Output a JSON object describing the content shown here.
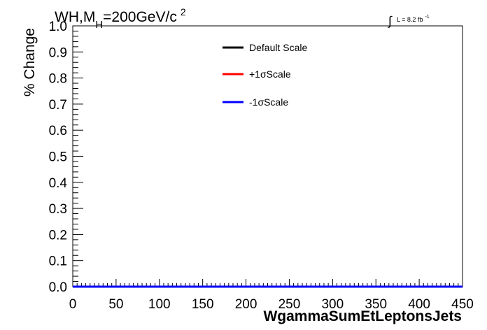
{
  "header": {
    "title_main": "WH,M",
    "title_sub": "H",
    "title_rest": "=200GeV/c",
    "title_sup": "2",
    "lumi_integral": "∫",
    "lumi_text": "L = 8.2 fb",
    "lumi_sup": "-1"
  },
  "chart_data": {
    "type": "line",
    "xlabel": "WgammaSumEtLeptonsJets",
    "ylabel": "% Change",
    "xlim": [
      0,
      450
    ],
    "ylim": [
      0,
      1.0
    ],
    "x_ticks": [
      0,
      50,
      100,
      150,
      200,
      250,
      300,
      350,
      400,
      450
    ],
    "x_tick_labels": [
      "0",
      "50",
      "100",
      "150",
      "200",
      "250",
      "300",
      "350",
      "400",
      "450"
    ],
    "y_ticks": [
      0,
      0.1,
      0.2,
      0.3,
      0.4,
      0.5,
      0.6,
      0.7,
      0.8,
      0.9,
      1.0
    ],
    "y_tick_labels": [
      "0.0",
      "0.1",
      "0.2",
      "0.3",
      "0.4",
      "0.5",
      "0.6",
      "0.7",
      "0.8",
      "0.9",
      "1.0"
    ],
    "grid": false,
    "legend_position": "top-right",
    "series": [
      {
        "name": "Default Scale",
        "color": "#000000",
        "x": [
          0,
          450
        ],
        "values": [
          0,
          0
        ]
      },
      {
        "name": "+1σScale",
        "color": "#ff0000",
        "x": [
          0,
          450
        ],
        "values": [
          0,
          0
        ]
      },
      {
        "name": "-1σScale",
        "color": "#0000ff",
        "x": [
          0,
          450
        ],
        "values": [
          0,
          0
        ]
      }
    ]
  }
}
